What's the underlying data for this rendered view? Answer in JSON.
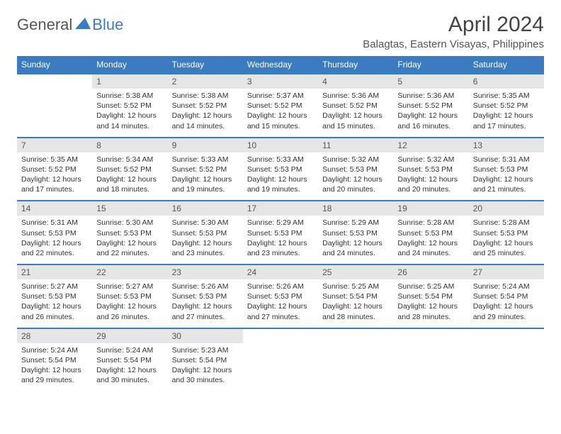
{
  "logo": {
    "text1": "General",
    "text2": "Blue"
  },
  "title": "April 2024",
  "location": "Balagtas, Eastern Visayas, Philippines",
  "header_bg": "#3b7bbf",
  "header_fg": "#ffffff",
  "daynum_bg": "#e6e6e6",
  "border_color": "#3b7bbf",
  "text_color": "#333333",
  "title_color": "#444444",
  "days_of_week": [
    "Sunday",
    "Monday",
    "Tuesday",
    "Wednesday",
    "Thursday",
    "Friday",
    "Saturday"
  ],
  "weeks": [
    [
      {
        "n": "",
        "sr": "",
        "ss": "",
        "dl": ""
      },
      {
        "n": "1",
        "sr": "5:38 AM",
        "ss": "5:52 PM",
        "dl": "12 hours and 14 minutes."
      },
      {
        "n": "2",
        "sr": "5:38 AM",
        "ss": "5:52 PM",
        "dl": "12 hours and 14 minutes."
      },
      {
        "n": "3",
        "sr": "5:37 AM",
        "ss": "5:52 PM",
        "dl": "12 hours and 15 minutes."
      },
      {
        "n": "4",
        "sr": "5:36 AM",
        "ss": "5:52 PM",
        "dl": "12 hours and 15 minutes."
      },
      {
        "n": "5",
        "sr": "5:36 AM",
        "ss": "5:52 PM",
        "dl": "12 hours and 16 minutes."
      },
      {
        "n": "6",
        "sr": "5:35 AM",
        "ss": "5:52 PM",
        "dl": "12 hours and 17 minutes."
      }
    ],
    [
      {
        "n": "7",
        "sr": "5:35 AM",
        "ss": "5:52 PM",
        "dl": "12 hours and 17 minutes."
      },
      {
        "n": "8",
        "sr": "5:34 AM",
        "ss": "5:52 PM",
        "dl": "12 hours and 18 minutes."
      },
      {
        "n": "9",
        "sr": "5:33 AM",
        "ss": "5:52 PM",
        "dl": "12 hours and 19 minutes."
      },
      {
        "n": "10",
        "sr": "5:33 AM",
        "ss": "5:53 PM",
        "dl": "12 hours and 19 minutes."
      },
      {
        "n": "11",
        "sr": "5:32 AM",
        "ss": "5:53 PM",
        "dl": "12 hours and 20 minutes."
      },
      {
        "n": "12",
        "sr": "5:32 AM",
        "ss": "5:53 PM",
        "dl": "12 hours and 20 minutes."
      },
      {
        "n": "13",
        "sr": "5:31 AM",
        "ss": "5:53 PM",
        "dl": "12 hours and 21 minutes."
      }
    ],
    [
      {
        "n": "14",
        "sr": "5:31 AM",
        "ss": "5:53 PM",
        "dl": "12 hours and 22 minutes."
      },
      {
        "n": "15",
        "sr": "5:30 AM",
        "ss": "5:53 PM",
        "dl": "12 hours and 22 minutes."
      },
      {
        "n": "16",
        "sr": "5:30 AM",
        "ss": "5:53 PM",
        "dl": "12 hours and 23 minutes."
      },
      {
        "n": "17",
        "sr": "5:29 AM",
        "ss": "5:53 PM",
        "dl": "12 hours and 23 minutes."
      },
      {
        "n": "18",
        "sr": "5:29 AM",
        "ss": "5:53 PM",
        "dl": "12 hours and 24 minutes."
      },
      {
        "n": "19",
        "sr": "5:28 AM",
        "ss": "5:53 PM",
        "dl": "12 hours and 24 minutes."
      },
      {
        "n": "20",
        "sr": "5:28 AM",
        "ss": "5:53 PM",
        "dl": "12 hours and 25 minutes."
      }
    ],
    [
      {
        "n": "21",
        "sr": "5:27 AM",
        "ss": "5:53 PM",
        "dl": "12 hours and 26 minutes."
      },
      {
        "n": "22",
        "sr": "5:27 AM",
        "ss": "5:53 PM",
        "dl": "12 hours and 26 minutes."
      },
      {
        "n": "23",
        "sr": "5:26 AM",
        "ss": "5:53 PM",
        "dl": "12 hours and 27 minutes."
      },
      {
        "n": "24",
        "sr": "5:26 AM",
        "ss": "5:53 PM",
        "dl": "12 hours and 27 minutes."
      },
      {
        "n": "25",
        "sr": "5:25 AM",
        "ss": "5:54 PM",
        "dl": "12 hours and 28 minutes."
      },
      {
        "n": "26",
        "sr": "5:25 AM",
        "ss": "5:54 PM",
        "dl": "12 hours and 28 minutes."
      },
      {
        "n": "27",
        "sr": "5:24 AM",
        "ss": "5:54 PM",
        "dl": "12 hours and 29 minutes."
      }
    ],
    [
      {
        "n": "28",
        "sr": "5:24 AM",
        "ss": "5:54 PM",
        "dl": "12 hours and 29 minutes."
      },
      {
        "n": "29",
        "sr": "5:24 AM",
        "ss": "5:54 PM",
        "dl": "12 hours and 30 minutes."
      },
      {
        "n": "30",
        "sr": "5:23 AM",
        "ss": "5:54 PM",
        "dl": "12 hours and 30 minutes."
      },
      {
        "n": "",
        "sr": "",
        "ss": "",
        "dl": ""
      },
      {
        "n": "",
        "sr": "",
        "ss": "",
        "dl": ""
      },
      {
        "n": "",
        "sr": "",
        "ss": "",
        "dl": ""
      },
      {
        "n": "",
        "sr": "",
        "ss": "",
        "dl": ""
      }
    ]
  ],
  "labels": {
    "sunrise": "Sunrise:",
    "sunset": "Sunset:",
    "daylight": "Daylight:"
  }
}
